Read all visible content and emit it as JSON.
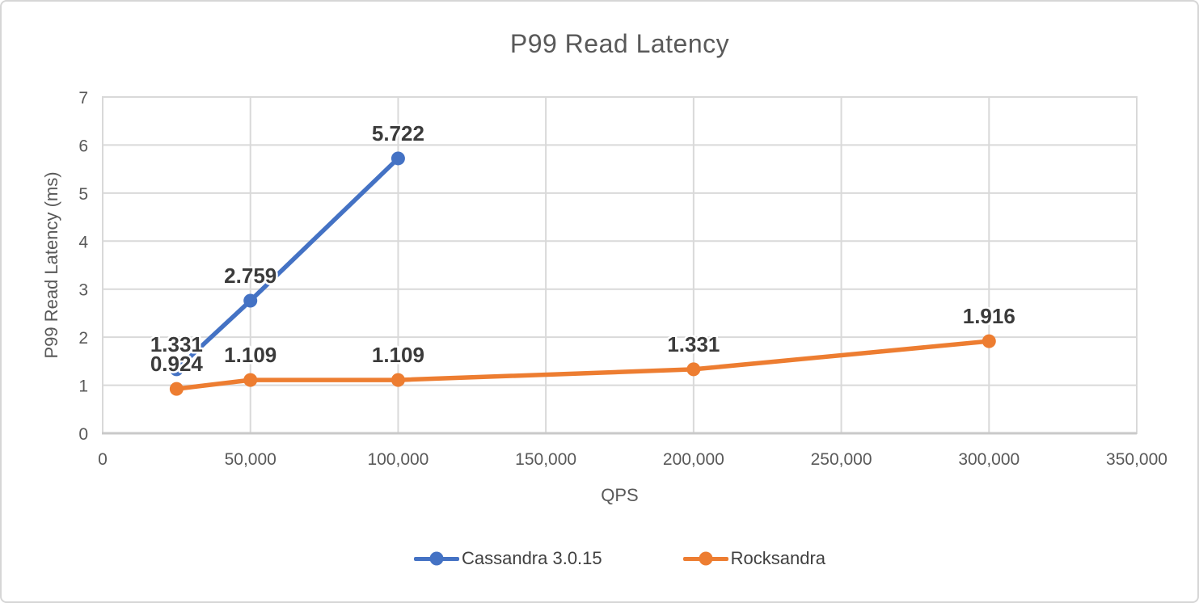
{
  "window": {
    "background": "#FFFFFF",
    "border_color": "#D6D6D6"
  },
  "chart_data": {
    "type": "line",
    "title": "P99 Read Latency",
    "xlabel": "QPS",
    "ylabel": "P99 Read Latency (ms)",
    "xlim": [
      0,
      350000
    ],
    "ylim": [
      0,
      7
    ],
    "x_ticks": [
      0,
      50000,
      100000,
      150000,
      200000,
      250000,
      300000,
      350000
    ],
    "x_tick_labels": [
      "0",
      "50,000",
      "100,000",
      "150,000",
      "200,000",
      "250,000",
      "300,000",
      "350,000"
    ],
    "y_ticks": [
      0,
      1,
      2,
      3,
      4,
      5,
      6,
      7
    ],
    "y_tick_labels": [
      "0",
      "1",
      "2",
      "3",
      "4",
      "5",
      "6",
      "7"
    ],
    "grid": true,
    "data_labels": true,
    "legend_position": "bottom-center",
    "gridline_color": "#D9D9D9",
    "axis_line_color": "#C9C9C9",
    "text_colors": {
      "title": "#595959",
      "axis": "#595959",
      "data_label": "#3B3B3B",
      "legend": "#404040"
    },
    "series": [
      {
        "name": "Cassandra 3.0.15",
        "color": "#4472C4",
        "x": [
          25000,
          50000,
          100000
        ],
        "y": [
          1.331,
          2.759,
          5.722
        ],
        "labels": [
          "1.331",
          "2.759",
          "5.722"
        ]
      },
      {
        "name": "Rocksandra",
        "color": "#ED7D31",
        "x": [
          25000,
          50000,
          100000,
          200000,
          300000
        ],
        "y": [
          0.924,
          1.109,
          1.109,
          1.331,
          1.916
        ],
        "labels": [
          "0.924",
          "1.109",
          "1.109",
          "1.331",
          "1.916"
        ]
      }
    ]
  }
}
